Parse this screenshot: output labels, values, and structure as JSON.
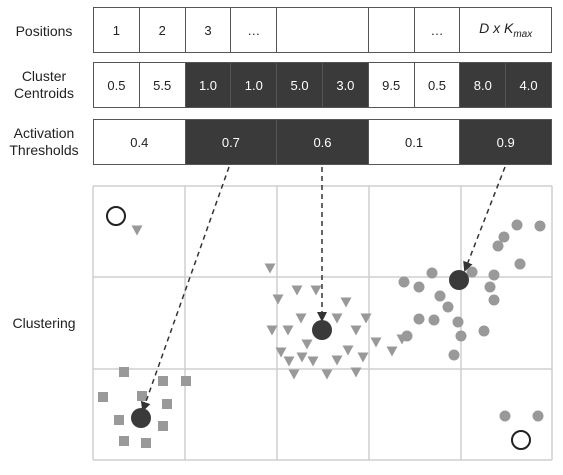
{
  "rows": {
    "positions": {
      "label": "Positions",
      "cells": [
        "1",
        "2",
        "3",
        "…",
        "",
        "",
        "…",
        "D x Kmax"
      ]
    },
    "centroids": {
      "label_line1": "Cluster",
      "label_line2": "Centroids",
      "cells": [
        {
          "text": "0.5",
          "dark": false
        },
        {
          "text": "5.5",
          "dark": false
        },
        {
          "text": "1.0",
          "dark": true
        },
        {
          "text": "1.0",
          "dark": true
        },
        {
          "text": "5.0",
          "dark": true
        },
        {
          "text": "3.0",
          "dark": true
        },
        {
          "text": "9.5",
          "dark": false
        },
        {
          "text": "0.5",
          "dark": false
        },
        {
          "text": "8.0",
          "dark": true
        },
        {
          "text": "4.0",
          "dark": true
        }
      ]
    },
    "thresholds": {
      "label_line1": "Activation",
      "label_line2": "Thresholds",
      "cells": [
        {
          "text": "0.4",
          "dark": false
        },
        {
          "text": "0.7",
          "dark": true
        },
        {
          "text": "0.6",
          "dark": true
        },
        {
          "text": "0.1",
          "dark": false
        },
        {
          "text": "0.9",
          "dark": true
        }
      ]
    },
    "clustering": {
      "label": "Clustering"
    }
  },
  "colors": {
    "dark": "#3a3a3a",
    "point_gray": "#999999",
    "grid_line": "#cfcfcf",
    "arrow": "#333333"
  }
}
